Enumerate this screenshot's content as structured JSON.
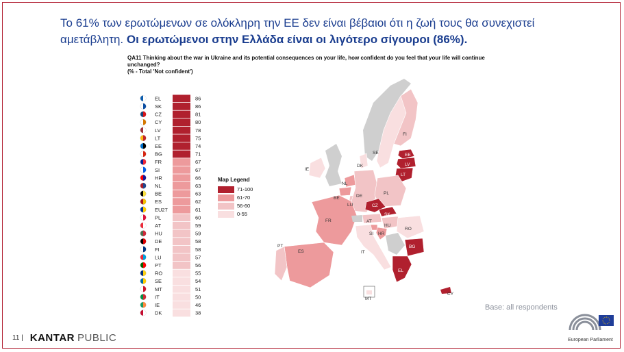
{
  "headline": {
    "normal": "Το 61% των ερωτώμενων σε ολόκληρη την ΕΕ δεν είναι βέβαιοι ότι η ζωή τους θα συνεχιστεί αμετάβλητη.",
    "bold": "Οι ερωτώμενοι στην Ελλάδα είναι οι λιγότερο σίγουροι (86%)."
  },
  "question": {
    "text": "QA11 Thinking about the war in Ukraine and its potential consequences on your life, how confident do you feel that your life will continue unchanged?",
    "subtitle": "(% - Total 'Not confident')"
  },
  "legend": {
    "title": "Map Legend",
    "items": [
      {
        "label": "71-100",
        "color": "#b0202e"
      },
      {
        "label": "61-70",
        "color": "#ed9a9c"
      },
      {
        "label": "56-60",
        "color": "#f2c4c6"
      },
      {
        "label": "0-55",
        "color": "#f9dfe0"
      }
    ]
  },
  "chart_data": {
    "type": "bar",
    "orientation": "horizontal",
    "title": "QA11 Thinking about the war in Ukraine and its potential consequences on your life, how confident do you feel that your life will continue unchanged?",
    "subtitle": "(% - Total 'Not confident')",
    "categories": [
      "EL",
      "SK",
      "CZ",
      "CY",
      "LV",
      "LT",
      "EE",
      "BG",
      "FR",
      "SI",
      "HR",
      "NL",
      "BE",
      "ES",
      "EU27",
      "PL",
      "AT",
      "HU",
      "DE",
      "FI",
      "LU",
      "PT",
      "RO",
      "SE",
      "MT",
      "IT",
      "IE",
      "DK"
    ],
    "values": [
      86,
      86,
      81,
      80,
      78,
      75,
      74,
      71,
      67,
      67,
      66,
      63,
      63,
      62,
      61,
      60,
      59,
      59,
      58,
      58,
      57,
      56,
      55,
      54,
      51,
      50,
      46,
      38
    ]
  },
  "map_labels": [
    "FI",
    "SE",
    "EE",
    "LV",
    "LT",
    "IE",
    "DK",
    "NL",
    "BE",
    "DE",
    "PL",
    "LU",
    "CZ",
    "SK",
    "FR",
    "AT",
    "HU",
    "RO",
    "SI",
    "HR",
    "BG",
    "PT",
    "ES",
    "IT",
    "EL",
    "MT",
    "CY"
  ],
  "base_text": "Base: all respondents",
  "footer": {
    "page": "11 |",
    "brand": "KANTAR",
    "brand2": "PUBLIC"
  },
  "ep_logo_text": "European Parliament"
}
